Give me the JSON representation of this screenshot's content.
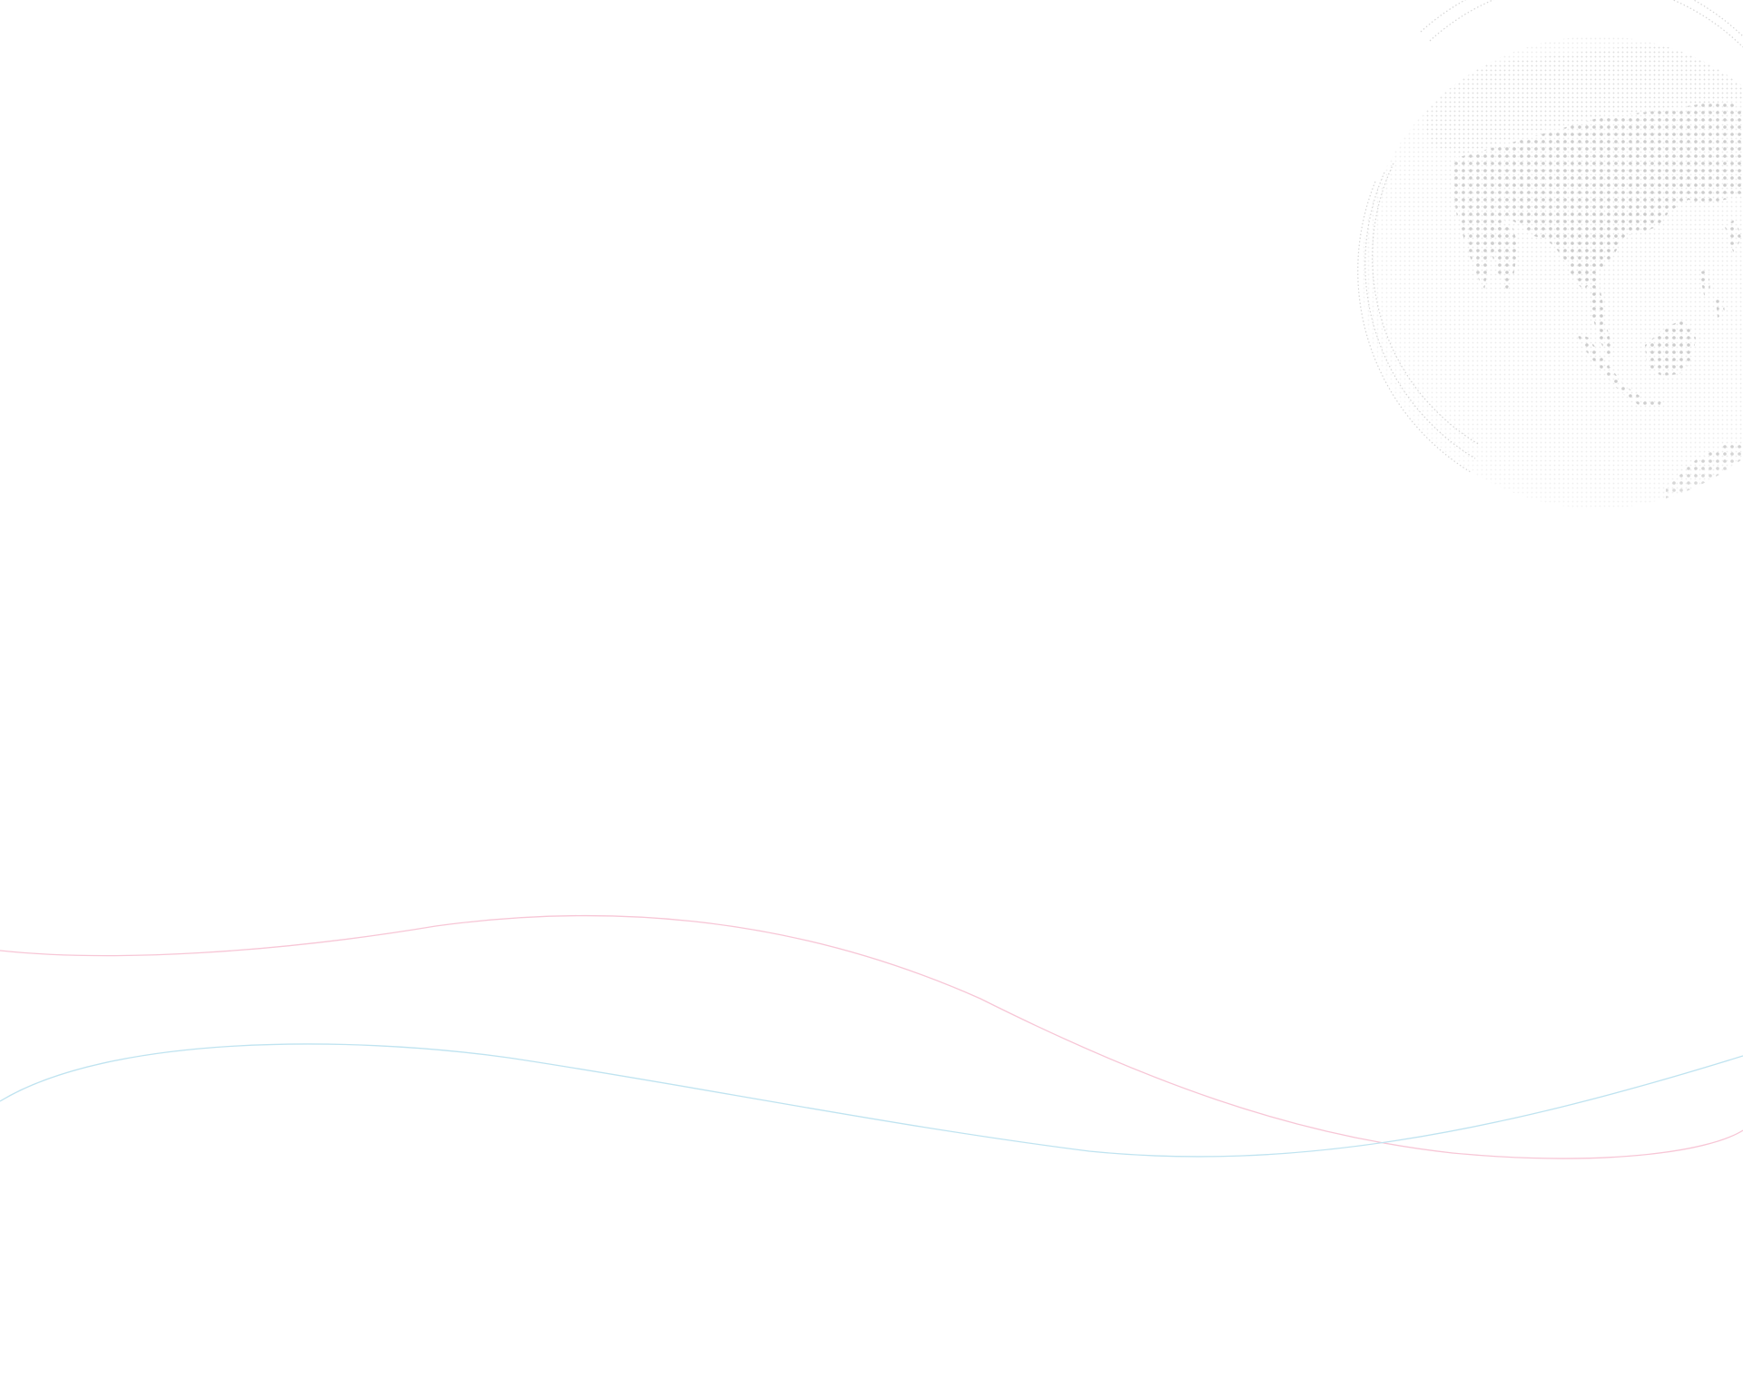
{
  "page": {
    "background": "#ffffff"
  },
  "decoration": {
    "globe": {
      "icon": "dotted-globe-icon",
      "dot_color": "#c9c9c9",
      "rim_color": "#d6d6d6"
    },
    "waves": [
      {
        "name": "pink-wave",
        "color": "#f7c6d6"
      },
      {
        "name": "blue-wave",
        "color": "#bfe3f0"
      }
    ]
  }
}
